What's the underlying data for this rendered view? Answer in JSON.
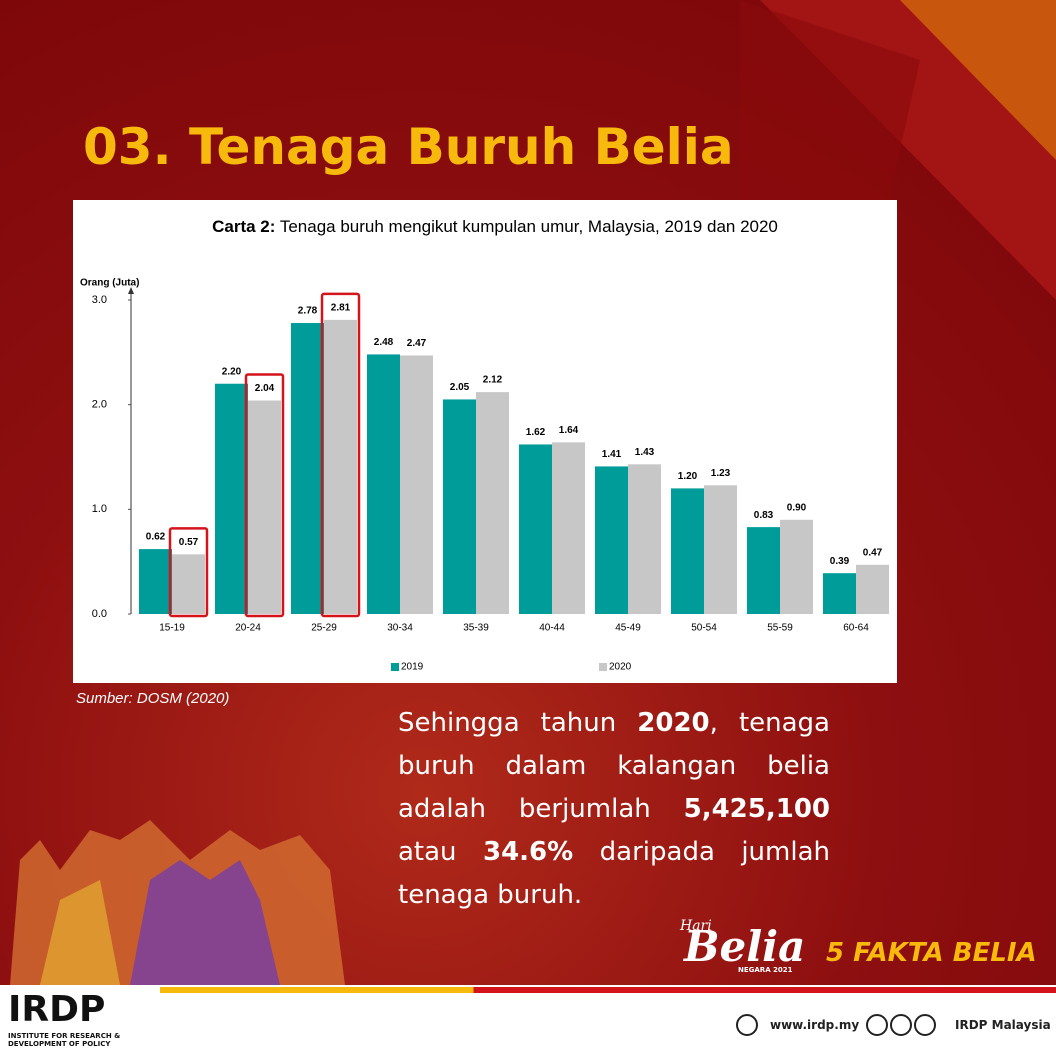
{
  "heading": "03. Tenaga Buruh Belia",
  "chart_data": {
    "type": "bar",
    "title_bold": "Carta 2:",
    "title": "Tenaga buruh mengikut kumpulan umur, Malaysia, 2019 dan 2020",
    "y_label": "Orang (Juta)",
    "categories": [
      "15-19",
      "20-24",
      "25-29",
      "30-34",
      "35-39",
      "40-44",
      "45-49",
      "50-54",
      "55-59",
      "60-64"
    ],
    "series": [
      {
        "name": "2019",
        "color": "#009c9a",
        "values": [
          0.62,
          2.2,
          2.78,
          2.48,
          2.05,
          1.62,
          1.41,
          1.2,
          0.83,
          0.39
        ],
        "value_labels": [
          "0.62",
          "2.20",
          "2.78",
          "2.48",
          "2.05",
          "1.62",
          "1.41",
          "1.20",
          "0.83",
          "0.39"
        ]
      },
      {
        "name": "2020",
        "color": "#c7c7c7",
        "values": [
          0.57,
          2.04,
          2.81,
          2.47,
          2.12,
          1.64,
          1.43,
          1.23,
          0.9,
          0.47
        ],
        "value_labels": [
          "0.57",
          "2.04",
          "2.81",
          "2.47",
          "2.12",
          "1.64",
          "1.43",
          "1.23",
          "0.90",
          "0.47"
        ]
      }
    ],
    "ylim": [
      0,
      3
    ],
    "yticks": [
      {
        "value": 0,
        "label": "0.0"
      },
      {
        "value": 1,
        "label": "1.0"
      },
      {
        "value": 2,
        "label": "2.0"
      },
      {
        "value": 3,
        "label": "3.0"
      }
    ],
    "highlight": {
      "series": 1,
      "indices": [
        0,
        1,
        2
      ],
      "color": "#d3141b"
    },
    "legend": "bottom"
  },
  "source": "Sumber: DOSM (2020)",
  "paragraph": [
    {
      "text": "Sehingga tahun ",
      "bold": false
    },
    {
      "text": "2020",
      "bold": true
    },
    {
      "text": ", tenaga buruh dalam kalangan belia adalah berjumlah ",
      "bold": false
    },
    {
      "text": "5,425,100",
      "bold": true
    },
    {
      "text": " atau ",
      "bold": false
    },
    {
      "text": "34.6%",
      "bold": true
    },
    {
      "text": " daripada jumlah tenaga buruh.",
      "bold": false
    }
  ],
  "badge": {
    "hari": "Hari",
    "belia": "Belia",
    "negara": "NEGARA 2021",
    "fakta": "5 FAKTA BELIA"
  },
  "footer": {
    "logo": "IRDP",
    "logo_sub": "INSTITUTE FOR RESEARCH & DEVELOPMENT OF POLICY",
    "website": "www.irdp.my",
    "social": "IRDP Malaysia"
  }
}
